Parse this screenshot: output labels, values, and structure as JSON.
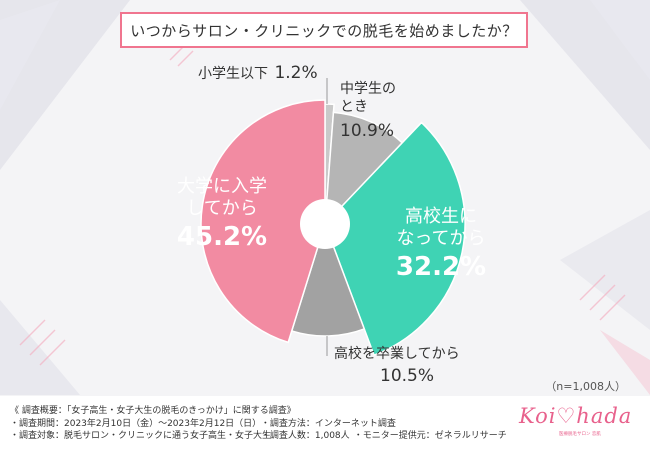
{
  "colors": {
    "pink": "#f28ba2",
    "gray_light": "#b5b5b5",
    "teal": "#3fd3b4",
    "gray_dark": "#a2a2a2",
    "gray_thin": "#c9c9c9",
    "accent": "#f0758f",
    "teal_text": "#2ccfa9"
  },
  "sample_note": "（n=1,008人）",
  "chart_data": {
    "type": "pie",
    "title": "いつからサロン・クリニックでの脱毛を始めましたか？",
    "donut": true,
    "slices": [
      {
        "name": "小学生以下",
        "value": 1.2,
        "label": "1.2%",
        "color": "#c9c9c9"
      },
      {
        "name": "中学生のとき",
        "label_lines": [
          "中学生の",
          "とき"
        ],
        "value": 10.9,
        "label": "10.9%",
        "color": "#b5b5b5"
      },
      {
        "name": "高校生になってから",
        "label_lines": [
          "高校生に",
          "なってから"
        ],
        "value": 32.2,
        "label": "32.2%",
        "color": "#3fd3b4"
      },
      {
        "name": "高校を卒業してから",
        "value": 10.5,
        "label": "10.5%",
        "color": "#a2a2a2"
      },
      {
        "name": "大学に入学してから",
        "label_lines": [
          "大学に入学",
          "してから"
        ],
        "value": 45.2,
        "label": "45.2%",
        "color": "#f28ba2"
      }
    ]
  },
  "footer": {
    "line1": "《 調査概要：「女子高生・女子大生の脱毛のきっかけ」に関する調査》",
    "period": "・調査期間：2023年2月10日（金）〜2023年2月12日（日）",
    "method": "・調査方法：インターネット調査",
    "target": "・調査対象：脱毛サロン・クリニックに通う女子高生・女子大生",
    "count": "・調査人数：1,008人",
    "provider": "・モニター提供元：ゼネラルリサーチ"
  },
  "logo": {
    "text": "Koi♡hada",
    "subtext": "医療脱毛サロン 恋肌"
  }
}
